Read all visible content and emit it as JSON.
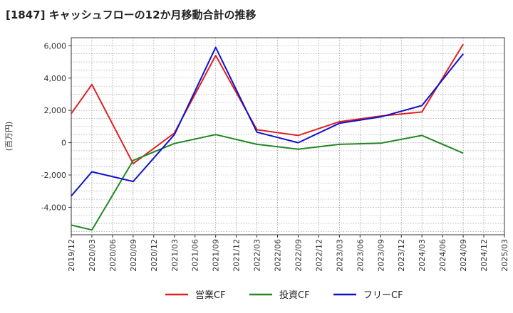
{
  "chart_data": {
    "type": "line",
    "title": "[1847]  キャッシュフローの12か月移動合計の推移",
    "ylabel": "(百万円)",
    "xlabel": "",
    "ylim": [
      -5700,
      6500
    ],
    "yticks": [
      -4000,
      -2000,
      0,
      2000,
      4000,
      6000
    ],
    "ytick_labels": [
      "-4,000",
      "-2,000",
      "0",
      "2,000",
      "4,000",
      "6,000"
    ],
    "categories": [
      "2019/12",
      "2020/03",
      "2020/06",
      "2020/09",
      "2020/12",
      "2021/03",
      "2021/06",
      "2021/09",
      "2021/12",
      "2022/03",
      "2022/06",
      "2022/09",
      "2022/12",
      "2023/03",
      "2023/06",
      "2023/09",
      "2023/12",
      "2024/03",
      "2024/06",
      "2024/09",
      "2024/12",
      "2025/03"
    ],
    "series": [
      {
        "name": "営業CF",
        "color": "#dd2222",
        "values": [
          1800,
          3600,
          null,
          -1300,
          null,
          600,
          null,
          5400,
          null,
          800,
          null,
          450,
          null,
          1300,
          null,
          1650,
          null,
          1900,
          null,
          6100,
          null,
          null
        ]
      },
      {
        "name": "投資CF",
        "color": "#228822",
        "values": [
          -5100,
          -5400,
          null,
          -1100,
          null,
          -50,
          null,
          500,
          null,
          -100,
          null,
          -400,
          null,
          -100,
          null,
          -30,
          null,
          450,
          null,
          -650,
          null,
          null
        ]
      },
      {
        "name": "フリーCF",
        "color": "#1111cc",
        "values": [
          -3300,
          -1800,
          null,
          -2400,
          null,
          500,
          null,
          5900,
          null,
          650,
          null,
          0,
          null,
          1200,
          null,
          1600,
          null,
          2300,
          null,
          5500,
          null,
          null
        ]
      }
    ],
    "grid": true,
    "legend": "bottom-center"
  }
}
